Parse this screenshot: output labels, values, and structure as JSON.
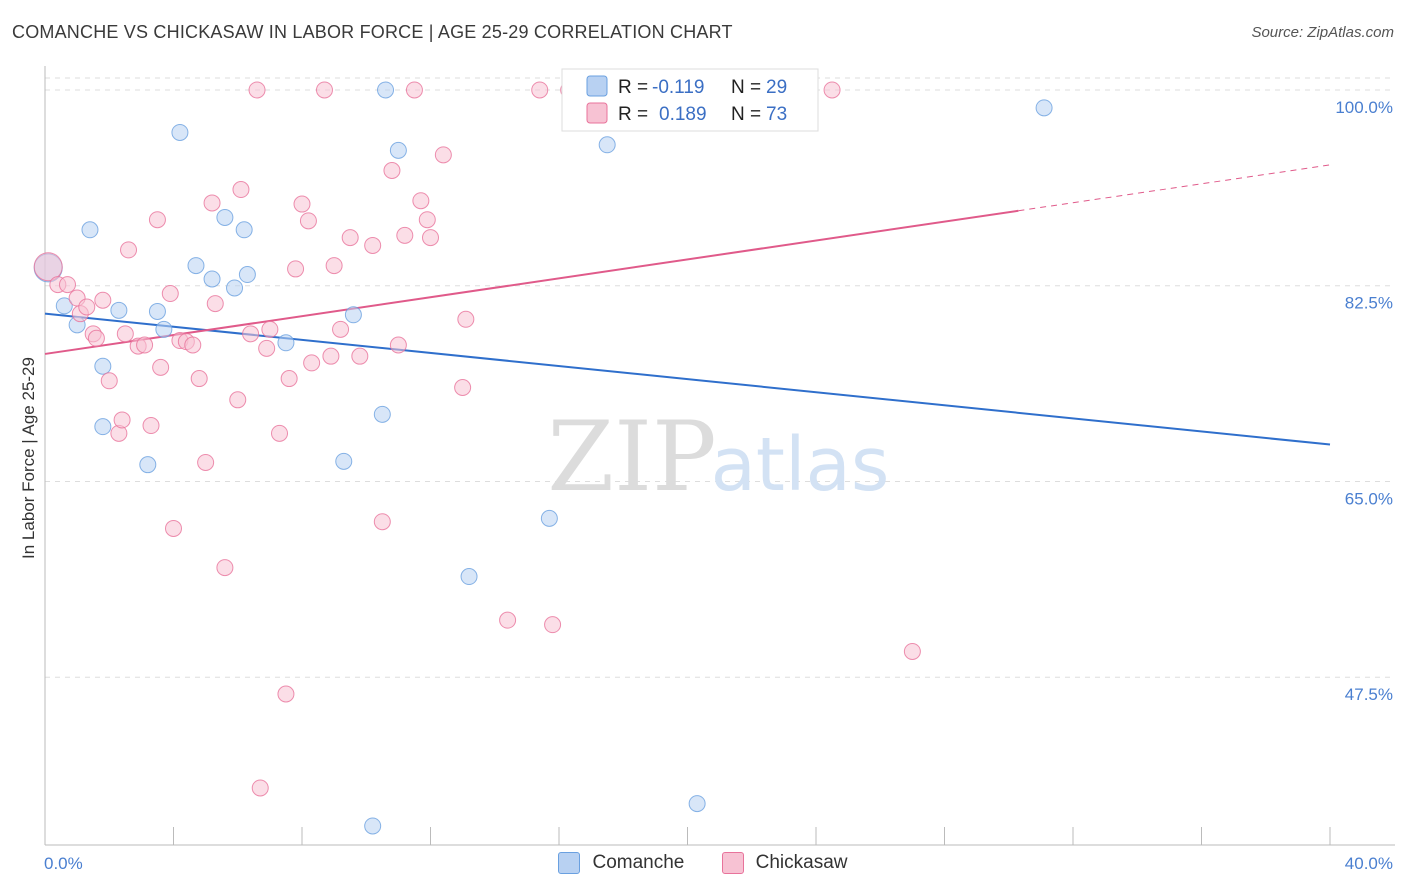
{
  "title": "COMANCHE VS CHICKASAW IN LABOR FORCE | AGE 25-29 CORRELATION CHART",
  "source": "Source: ZipAtlas.com",
  "watermark": {
    "zip": "ZIP",
    "atlas": "atlas"
  },
  "colors": {
    "comanche": "#6aa0e0",
    "comanche_fill": "#b8d1f2",
    "chickasaw": "#e8739b",
    "chickasaw_fill": "#f7c2d3",
    "comanche_line": "#2f6fcc",
    "chickasaw_line": "#e05a8a",
    "grid": "#dddddd"
  },
  "legend": {
    "r_label": "R =",
    "n_label": "N =",
    "comanche": {
      "r": "-0.119",
      "n": "29"
    },
    "chickasaw": {
      "r": "0.189",
      "n": "73"
    }
  },
  "bottom_legend": [
    "Comanche",
    "Chickasaw"
  ],
  "chart_data": {
    "type": "scatter",
    "ylabel": "In Labor Force | Age 25-29",
    "xlim": [
      0,
      40
    ],
    "ylim": [
      32.5,
      102.5
    ],
    "x_tick_labels": [
      "0.0%",
      "40.0%"
    ],
    "y_ticks": [
      100,
      82.5,
      65,
      47.5
    ],
    "y_tick_labels": [
      "100.0%",
      "82.5%",
      "65.0%",
      "47.5%"
    ],
    "grid": true,
    "series": [
      {
        "name": "Comanche",
        "trend": {
          "x0": 0,
          "y0": 80.0,
          "x1": 40,
          "y1": 68.3
        },
        "points": [
          [
            0.1,
            84.1
          ],
          [
            0.6,
            80.7
          ],
          [
            1.0,
            79.0
          ],
          [
            1.4,
            87.5
          ],
          [
            1.8,
            75.3
          ],
          [
            1.8,
            69.9
          ],
          [
            2.3,
            80.3
          ],
          [
            3.2,
            66.5
          ],
          [
            3.5,
            80.2
          ],
          [
            3.7,
            78.6
          ],
          [
            4.2,
            96.2
          ],
          [
            4.7,
            84.3
          ],
          [
            5.2,
            83.1
          ],
          [
            5.6,
            88.6
          ],
          [
            5.9,
            82.3
          ],
          [
            6.2,
            87.5
          ],
          [
            6.3,
            83.5
          ],
          [
            7.5,
            77.4
          ],
          [
            9.3,
            66.8
          ],
          [
            9.6,
            79.9
          ],
          [
            10.2,
            34.2
          ],
          [
            10.5,
            71.0
          ],
          [
            10.6,
            100.0
          ],
          [
            11.0,
            94.6
          ],
          [
            13.2,
            56.5
          ],
          [
            15.7,
            61.7
          ],
          [
            17.5,
            95.1
          ],
          [
            20.3,
            36.2
          ],
          [
            31.1,
            98.4
          ]
        ]
      },
      {
        "name": "Chickasaw",
        "trend": {
          "x0": 0,
          "y0": 76.4,
          "x1": 40,
          "y1": 93.3,
          "solid_until": 30.3
        },
        "points": [
          [
            0.1,
            84.2
          ],
          [
            0.4,
            82.6
          ],
          [
            0.7,
            82.6
          ],
          [
            1.0,
            81.4
          ],
          [
            1.1,
            80.0
          ],
          [
            1.3,
            80.6
          ],
          [
            1.5,
            78.2
          ],
          [
            1.6,
            77.8
          ],
          [
            1.8,
            81.2
          ],
          [
            2.0,
            74.0
          ],
          [
            2.3,
            69.3
          ],
          [
            2.4,
            70.5
          ],
          [
            2.5,
            78.2
          ],
          [
            2.6,
            85.7
          ],
          [
            2.9,
            77.1
          ],
          [
            3.1,
            77.2
          ],
          [
            3.3,
            70.0
          ],
          [
            3.5,
            88.4
          ],
          [
            3.6,
            75.2
          ],
          [
            3.9,
            81.8
          ],
          [
            4.0,
            60.8
          ],
          [
            4.2,
            77.6
          ],
          [
            4.4,
            77.5
          ],
          [
            4.6,
            77.2
          ],
          [
            4.8,
            74.2
          ],
          [
            5.0,
            66.7
          ],
          [
            5.2,
            89.9
          ],
          [
            5.3,
            80.9
          ],
          [
            5.6,
            57.3
          ],
          [
            6.0,
            72.3
          ],
          [
            6.1,
            91.1
          ],
          [
            6.4,
            78.2
          ],
          [
            6.6,
            100.0
          ],
          [
            6.7,
            37.6
          ],
          [
            6.9,
            76.9
          ],
          [
            7.0,
            78.6
          ],
          [
            7.3,
            69.3
          ],
          [
            7.5,
            46.0
          ],
          [
            7.6,
            74.2
          ],
          [
            7.8,
            84.0
          ],
          [
            8.0,
            89.8
          ],
          [
            8.2,
            88.3
          ],
          [
            8.3,
            75.6
          ],
          [
            8.7,
            100.0
          ],
          [
            8.9,
            76.2
          ],
          [
            9.0,
            84.3
          ],
          [
            9.2,
            78.6
          ],
          [
            9.5,
            86.8
          ],
          [
            9.8,
            76.2
          ],
          [
            10.2,
            86.1
          ],
          [
            10.5,
            61.4
          ],
          [
            10.8,
            92.8
          ],
          [
            11.0,
            77.2
          ],
          [
            11.2,
            87.0
          ],
          [
            11.5,
            100.0
          ],
          [
            11.7,
            90.1
          ],
          [
            11.9,
            88.4
          ],
          [
            12.0,
            86.8
          ],
          [
            12.4,
            94.2
          ],
          [
            13.0,
            73.4
          ],
          [
            13.1,
            79.5
          ],
          [
            14.4,
            52.6
          ],
          [
            15.4,
            100.0
          ],
          [
            15.8,
            52.2
          ],
          [
            16.3,
            100.0
          ],
          [
            16.6,
            100.0
          ],
          [
            17.2,
            100.0
          ],
          [
            18.3,
            100.0
          ],
          [
            18.9,
            100.0
          ],
          [
            19.6,
            100.0
          ],
          [
            20.9,
            100.0
          ],
          [
            24.5,
            100.0
          ],
          [
            27.0,
            49.8
          ]
        ]
      }
    ]
  }
}
